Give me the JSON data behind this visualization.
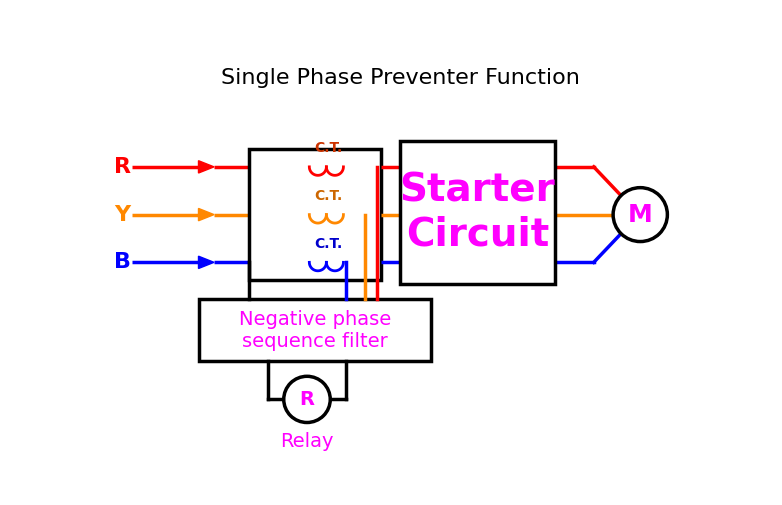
{
  "title": "Single Phase Preventer Function",
  "title_fontsize": 16,
  "bg_color": "#ffffff",
  "phase_labels": [
    "R",
    "Y",
    "B"
  ],
  "phase_colors": [
    "#ff0000",
    "#ff8800",
    "#0000ff"
  ],
  "ct_colors": [
    "#cc4400",
    "#cc7700",
    "#0000cc"
  ],
  "ct_label_color": "#cc4400",
  "ct_label": "C.T.",
  "starter_text": "Starter\nCircuit",
  "starter_color": "#ff00ff",
  "filter_text": "Negative phase\nsequence filter",
  "filter_color": "#ff00ff",
  "relay_label": "R",
  "relay_text": "Relay",
  "relay_color": "#ff00ff",
  "line_width": 2.5,
  "lw_coil": 2.0
}
